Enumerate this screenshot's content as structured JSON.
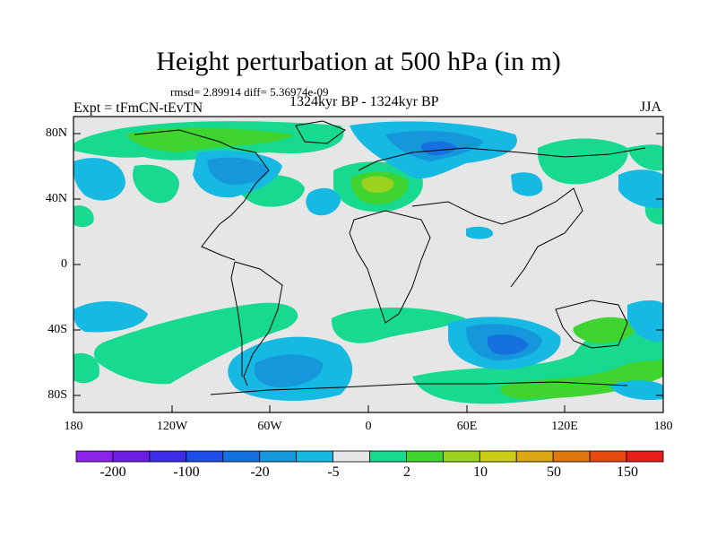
{
  "figure": {
    "title": "Height perturbation at 500 hPa (in m)",
    "stats": "rmsd= 2.89914 diff= 5.36974e-09",
    "expt": "Expt = tFmCN-tEvTN",
    "period": "1324kyr BP - 1324kyr BP",
    "season": "JJA"
  },
  "map": {
    "projection": "cylindrical-equidistant",
    "lat_labels": [
      "80N",
      "40N",
      "0",
      "40S",
      "80S"
    ],
    "lon_labels": [
      "180",
      "120W",
      "60W",
      "0",
      "60E",
      "120E",
      "180"
    ],
    "land_color": "#e6e6e6"
  },
  "colorbar": {
    "labels": [
      "-200",
      "-100",
      "-20",
      "-5",
      "2",
      "10",
      "50",
      "150"
    ],
    "colors": [
      "#8c23e8",
      "#6a1fe0",
      "#3c2ee6",
      "#1f4de8",
      "#1670e0",
      "#1697dc",
      "#16b9e2",
      "#e6e6e6",
      "#18d990",
      "#3fd430",
      "#9bd11f",
      "#c8cd16",
      "#d9a812",
      "#e07610",
      "#e64a10",
      "#e61e1e"
    ]
  }
}
